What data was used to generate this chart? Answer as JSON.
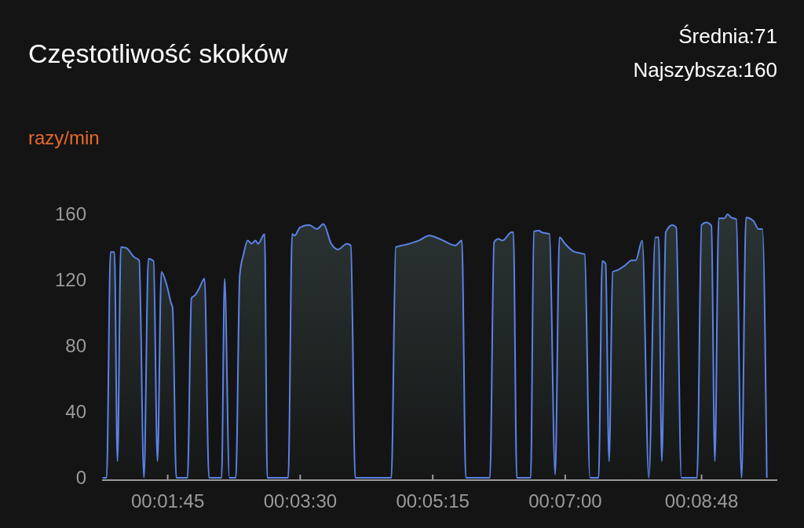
{
  "chart_data": {
    "type": "area",
    "title": "Częstotliwość skoków",
    "ylabel": "razy/min",
    "annotations": [
      "Średnia:71",
      "Najszybsza:160"
    ],
    "x": [
      53.4,
      56.6,
      59.7,
      62.8,
      65.2,
      67.9,
      72.1,
      78.3,
      82.4,
      86.2,
      89.7,
      93.8,
      96.9,
      100.0,
      104.2,
      107.7,
      108.9,
      111.8,
      120.7,
      123.8,
      126.9,
      130.0,
      134.2,
      137.7,
      147.7,
      150.1,
      153.9,
      159.0,
      162.1,
      165.2,
      168.4,
      171.5,
      174.6,
      176.6,
      181.8,
      183.9,
      200.5,
      203.6,
      205.6,
      209.8,
      217.0,
      223.2,
      228.4,
      234.6,
      239.8,
      247.0,
      250.1,
      253.6,
      282.2,
      285.7,
      293.6,
      303.9,
      312.3,
      320.5,
      332.9,
      338.1,
      341.2,
      360.3,
      363.6,
      367.1,
      370.2,
      377.5,
      378.9,
      381.6,
      392.6,
      395.1,
      399.2,
      401.3,
      407.5,
      412.0,
      415.4,
      419.9,
      426.1,
      435.4,
      439.6,
      446.4,
      449.3,
      452.0,
      454.7,
      457.6,
      461.3,
      467.5,
      472.7,
      475.8,
      481.0,
      486.2,
      491.3,
      494.0,
      496.5,
      499.6,
      504.8,
      507.9,
      512.0,
      524.4,
      528.0,
      531.7,
      535.8,
      538.5,
      541.6,
      546.2,
      548.6,
      551.4,
      555.5,
      559.7,
      563.2,
      569.0,
      573.1,
      576.2,
      579.7
    ],
    "series": [
      {
        "color": "#5b82e6",
        "values": [
          0,
          0,
          137,
          137,
          10,
          140,
          139.5,
          134,
          132,
          0,
          133,
          131.6,
          10,
          125,
          117,
          106,
          103,
          0,
          0,
          109,
          111,
          115,
          121,
          0,
          0,
          121,
          0,
          0,
          123,
          136,
          144,
          142,
          144,
          142,
          148,
          0,
          0,
          148,
          147,
          152,
          153.5,
          151,
          154,
          142,
          138.6,
          142,
          141,
          0,
          0,
          140,
          141.5,
          144,
          147,
          145,
          141,
          144,
          0,
          0,
          143,
          145,
          144,
          149,
          149,
          0,
          0,
          149.5,
          150,
          149,
          148,
          2,
          146,
          142,
          137.6,
          135.6,
          0,
          0,
          131.6,
          130,
          10,
          125,
          126,
          129,
          132,
          132,
          144,
          0,
          146,
          146,
          10,
          149,
          153.5,
          152,
          0,
          0,
          153.5,
          155,
          153,
          10,
          157.5,
          157.5,
          160,
          158,
          157,
          0,
          158,
          156,
          151,
          151,
          0
        ]
      }
    ],
    "xlim": [
      53,
      588
    ],
    "xticks": [
      {
        "value": 105,
        "label": "00:01:45"
      },
      {
        "value": 210,
        "label": "00:03:30"
      },
      {
        "value": 315,
        "label": "00:05:15"
      },
      {
        "value": 420,
        "label": "00:07:00"
      },
      {
        "value": 528,
        "label": "00:08:48"
      }
    ],
    "ylim": [
      0,
      160
    ],
    "yticks": [
      0,
      40,
      80,
      120,
      160
    ]
  }
}
